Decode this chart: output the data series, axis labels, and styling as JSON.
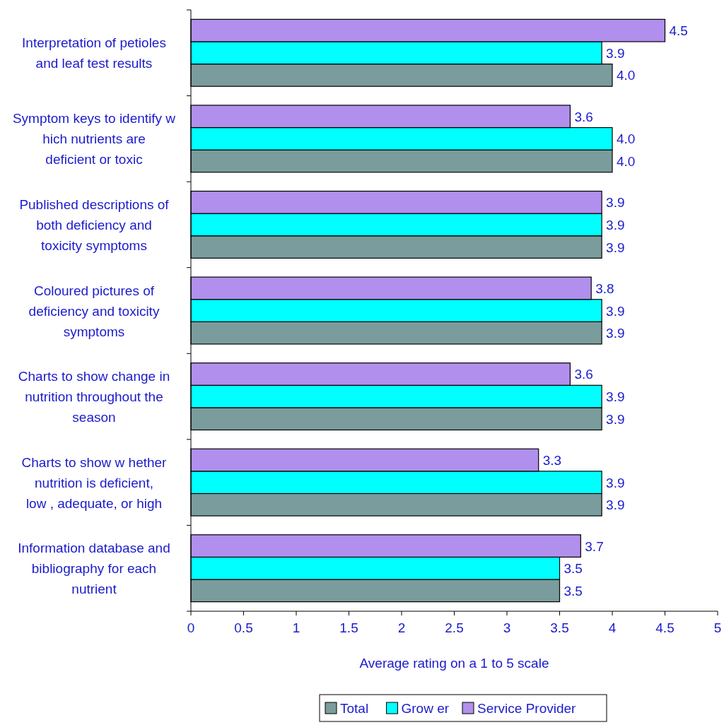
{
  "chart_data": {
    "type": "bar",
    "orientation": "horizontal",
    "xlabel": "Average rating on a 1 to 5 scale",
    "categories": [
      "Interpretation of petioles and leaf test results",
      "Symptom keys to identify w hich nutrients are deficient or toxic",
      "Published descriptions of both deficiency and toxicity symptoms",
      "Coloured pictures of deficiency and toxicity symptoms",
      "Charts to show  change in nutrition throughout the season",
      "Charts to show  w hether nutrition is deficient, low , adequate, or high",
      "Information database and bibliography for each nutrient"
    ],
    "series": [
      {
        "name": "Total",
        "color": "#7a9c9c",
        "values": [
          4.0,
          4.0,
          3.9,
          3.9,
          3.9,
          3.9,
          3.5
        ],
        "value_labels": [
          "4.0",
          "4.0",
          "3.9",
          "3.9",
          "3.9",
          "3.9",
          "3.5"
        ]
      },
      {
        "name": "Grow er",
        "color": "#00ffff",
        "values": [
          3.9,
          4.0,
          3.9,
          3.9,
          3.9,
          3.9,
          3.5
        ],
        "value_labels": [
          "3.9",
          "4.0",
          "3.9",
          "3.9",
          "3.9",
          "3.9",
          "3.5"
        ]
      },
      {
        "name": "Service Provider",
        "color": "#b18fec",
        "values": [
          4.5,
          3.6,
          3.9,
          3.8,
          3.6,
          3.3,
          3.7
        ],
        "value_labels": [
          "4.5",
          "3.6",
          "3.9",
          "3.8",
          "3.6",
          "3.3",
          "3.7"
        ]
      }
    ],
    "xlim": [
      0,
      5
    ],
    "xticks": [
      0,
      0.5,
      1,
      1.5,
      2,
      2.5,
      3,
      3.5,
      4,
      4.5,
      5
    ],
    "grid": false,
    "legend": "bottom"
  }
}
